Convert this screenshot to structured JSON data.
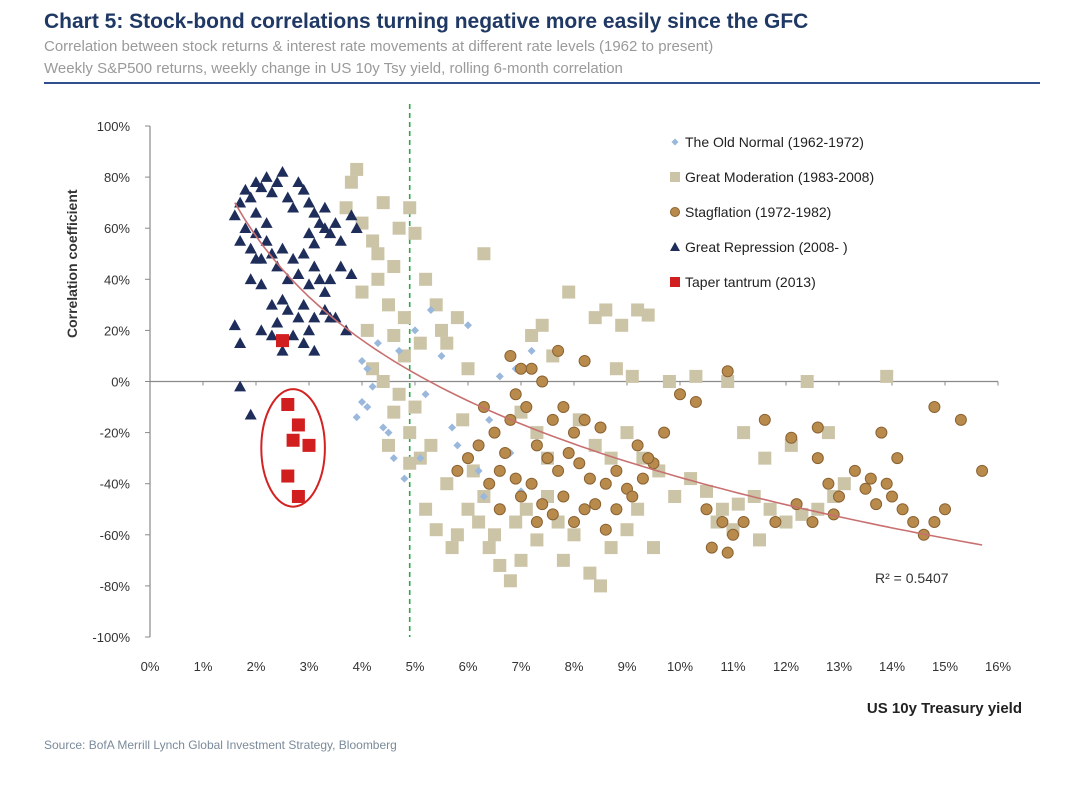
{
  "header": {
    "title": "Chart 5: Stock-bond correlations turning negative more easily since the GFC",
    "subtitle1": "Correlation between stock returns & interest rate movements at different rate levels (1962 to present)",
    "subtitle2": "Weekly S&P500 returns, weekly change in US 10y Tsy yield, rolling 6-month correlation"
  },
  "source": "Source: BofA Merrill Lynch Global Investment Strategy, Bloomberg",
  "chart_data": {
    "type": "scatter",
    "xlabel": "US 10y Treasury yield",
    "ylabel": "Correlation coefficient",
    "xlim": [
      0,
      16
    ],
    "ylim": [
      -100,
      100
    ],
    "x_ticks": [
      "0%",
      "1%",
      "2%",
      "3%",
      "4%",
      "5%",
      "6%",
      "7%",
      "8%",
      "9%",
      "10%",
      "11%",
      "12%",
      "13%",
      "14%",
      "15%",
      "16%"
    ],
    "y_ticks": [
      "100%",
      "80%",
      "60%",
      "40%",
      "20%",
      "0%",
      "-20%",
      "-40%",
      "-60%",
      "-80%",
      "-100%"
    ],
    "legend_position": "top-right",
    "reference_line": {
      "x": 4.9,
      "style": "dashed",
      "color": "#2aa84a"
    },
    "trendline": {
      "type": "logarithmic",
      "color": "#c87070",
      "x_range": [
        1.6,
        15.7
      ],
      "y_start": 70,
      "y_end": -64
    },
    "r_squared_label": "R² = 0.5407",
    "series": [
      {
        "name": "The Old Normal (1962-1972)",
        "marker": "diamond",
        "color": "#9ab8dc",
        "points": [
          [
            4.0,
            -8
          ],
          [
            4.1,
            -10
          ],
          [
            4.1,
            5
          ],
          [
            4.2,
            -2
          ],
          [
            4.0,
            8
          ],
          [
            3.9,
            -14
          ],
          [
            4.3,
            15
          ],
          [
            4.5,
            -20
          ],
          [
            4.6,
            -30
          ],
          [
            4.8,
            -38
          ],
          [
            4.7,
            12
          ],
          [
            5.0,
            20
          ],
          [
            5.2,
            -5
          ],
          [
            5.5,
            10
          ],
          [
            5.7,
            -18
          ],
          [
            5.8,
            -25
          ],
          [
            6.0,
            22
          ],
          [
            6.2,
            -35
          ],
          [
            6.3,
            -45
          ],
          [
            6.6,
            2
          ],
          [
            6.8,
            -28
          ],
          [
            7.0,
            -43
          ],
          [
            7.2,
            12
          ],
          [
            6.4,
            -15
          ],
          [
            5.3,
            28
          ],
          [
            5.1,
            -30
          ],
          [
            4.4,
            -18
          ],
          [
            6.9,
            5
          ]
        ]
      },
      {
        "name": "Great Moderation (1983-2008)",
        "marker": "square",
        "color": "#ccc4a6",
        "points": [
          [
            3.7,
            68
          ],
          [
            3.8,
            78
          ],
          [
            3.9,
            83
          ],
          [
            4.0,
            62
          ],
          [
            4.2,
            55
          ],
          [
            4.4,
            70
          ],
          [
            4.6,
            45
          ],
          [
            4.9,
            68
          ],
          [
            5.0,
            58
          ],
          [
            4.3,
            40
          ],
          [
            4.5,
            30
          ],
          [
            4.1,
            20
          ],
          [
            4.6,
            18
          ],
          [
            4.8,
            10
          ],
          [
            4.2,
            5
          ],
          [
            4.4,
            0
          ],
          [
            4.7,
            -5
          ],
          [
            5.0,
            -10
          ],
          [
            4.9,
            -20
          ],
          [
            5.1,
            -30
          ],
          [
            5.3,
            -25
          ],
          [
            5.2,
            40
          ],
          [
            5.4,
            30
          ],
          [
            5.1,
            15
          ],
          [
            5.6,
            15
          ],
          [
            5.8,
            25
          ],
          [
            6.0,
            5
          ],
          [
            5.9,
            -15
          ],
          [
            6.1,
            -35
          ],
          [
            6.3,
            -45
          ],
          [
            6.2,
            -55
          ],
          [
            6.4,
            -65
          ],
          [
            6.6,
            -72
          ],
          [
            6.8,
            -78
          ],
          [
            7.0,
            -70
          ],
          [
            5.8,
            -60
          ],
          [
            6.0,
            -50
          ],
          [
            5.6,
            -40
          ],
          [
            5.7,
            -65
          ],
          [
            6.5,
            -60
          ],
          [
            6.9,
            -55
          ],
          [
            7.1,
            -50
          ],
          [
            7.3,
            -62
          ],
          [
            7.5,
            -45
          ],
          [
            7.7,
            -55
          ],
          [
            7.8,
            -70
          ],
          [
            8.0,
            -60
          ],
          [
            8.3,
            -75
          ],
          [
            8.5,
            -80
          ],
          [
            8.7,
            -65
          ],
          [
            9.0,
            -58
          ],
          [
            9.2,
            -50
          ],
          [
            9.5,
            -65
          ],
          [
            7.2,
            18
          ],
          [
            7.4,
            22
          ],
          [
            7.6,
            10
          ],
          [
            7.9,
            35
          ],
          [
            8.4,
            25
          ],
          [
            8.6,
            28
          ],
          [
            8.9,
            22
          ],
          [
            9.2,
            28
          ],
          [
            9.4,
            26
          ],
          [
            8.8,
            5
          ],
          [
            9.1,
            2
          ],
          [
            9.8,
            0
          ],
          [
            10.3,
            2
          ],
          [
            10.9,
            0
          ],
          [
            12.4,
            0
          ],
          [
            13.9,
            2
          ],
          [
            7.3,
            -20
          ],
          [
            7.5,
            -30
          ],
          [
            7.0,
            -12
          ],
          [
            8.1,
            -15
          ],
          [
            8.4,
            -25
          ],
          [
            8.7,
            -30
          ],
          [
            9.0,
            -20
          ],
          [
            9.3,
            -30
          ],
          [
            9.6,
            -35
          ],
          [
            9.9,
            -45
          ],
          [
            10.2,
            -38
          ],
          [
            10.5,
            -43
          ],
          [
            10.8,
            -50
          ],
          [
            11.1,
            -48
          ],
          [
            11.4,
            -45
          ],
          [
            11.7,
            -50
          ],
          [
            12.0,
            -55
          ],
          [
            12.3,
            -52
          ],
          [
            12.6,
            -50
          ],
          [
            12.9,
            -45
          ],
          [
            11.2,
            -20
          ],
          [
            11.6,
            -30
          ],
          [
            12.1,
            -25
          ],
          [
            12.8,
            -20
          ],
          [
            13.1,
            -40
          ],
          [
            11.0,
            -58
          ],
          [
            11.5,
            -62
          ],
          [
            10.7,
            -55
          ],
          [
            6.3,
            50
          ],
          [
            4.7,
            60
          ],
          [
            4.3,
            50
          ],
          [
            4.0,
            35
          ],
          [
            4.8,
            25
          ],
          [
            5.5,
            20
          ],
          [
            4.5,
            -25
          ],
          [
            4.6,
            -12
          ],
          [
            5.2,
            -50
          ],
          [
            5.4,
            -58
          ],
          [
            4.9,
            -32
          ]
        ]
      },
      {
        "name": "Stagflation (1972-1982)",
        "marker": "circle",
        "color": "#b88a4c",
        "points": [
          [
            6.8,
            10
          ],
          [
            7.2,
            5
          ],
          [
            7.4,
            0
          ],
          [
            6.9,
            -5
          ],
          [
            7.1,
            -10
          ],
          [
            7.6,
            -15
          ],
          [
            7.8,
            -10
          ],
          [
            8.0,
            -20
          ],
          [
            8.2,
            -15
          ],
          [
            8.5,
            -18
          ],
          [
            7.3,
            -25
          ],
          [
            7.5,
            -30
          ],
          [
            7.7,
            -35
          ],
          [
            7.9,
            -28
          ],
          [
            8.1,
            -32
          ],
          [
            8.3,
            -38
          ],
          [
            8.6,
            -40
          ],
          [
            8.8,
            -35
          ],
          [
            9.0,
            -42
          ],
          [
            6.5,
            -20
          ],
          [
            6.7,
            -28
          ],
          [
            6.9,
            -38
          ],
          [
            7.0,
            -45
          ],
          [
            7.2,
            -40
          ],
          [
            7.4,
            -48
          ],
          [
            7.6,
            -52
          ],
          [
            7.8,
            -45
          ],
          [
            8.0,
            -55
          ],
          [
            8.2,
            -50
          ],
          [
            8.4,
            -48
          ],
          [
            8.6,
            -58
          ],
          [
            8.8,
            -50
          ],
          [
            9.1,
            -45
          ],
          [
            9.3,
            -38
          ],
          [
            9.5,
            -32
          ],
          [
            6.2,
            -25
          ],
          [
            6.0,
            -30
          ],
          [
            5.8,
            -35
          ],
          [
            6.4,
            -40
          ],
          [
            6.6,
            -35
          ],
          [
            7.0,
            5
          ],
          [
            6.8,
            -15
          ],
          [
            7.7,
            12
          ],
          [
            8.2,
            8
          ],
          [
            9.2,
            -25
          ],
          [
            9.4,
            -30
          ],
          [
            10.0,
            -5
          ],
          [
            10.3,
            -8
          ],
          [
            10.5,
            -50
          ],
          [
            10.8,
            -55
          ],
          [
            11.0,
            -60
          ],
          [
            10.6,
            -65
          ],
          [
            10.9,
            -67
          ],
          [
            11.2,
            -55
          ],
          [
            11.6,
            -15
          ],
          [
            12.1,
            -22
          ],
          [
            12.6,
            -18
          ],
          [
            12.6,
            -30
          ],
          [
            12.8,
            -40
          ],
          [
            13.0,
            -45
          ],
          [
            13.3,
            -35
          ],
          [
            13.6,
            -38
          ],
          [
            13.9,
            -40
          ],
          [
            14.1,
            -30
          ],
          [
            13.8,
            -20
          ],
          [
            13.5,
            -42
          ],
          [
            13.7,
            -48
          ],
          [
            14.0,
            -45
          ],
          [
            14.2,
            -50
          ],
          [
            14.4,
            -55
          ],
          [
            14.6,
            -60
          ],
          [
            14.8,
            -10
          ],
          [
            14.8,
            -55
          ],
          [
            15.0,
            -50
          ],
          [
            15.3,
            -15
          ],
          [
            15.7,
            -35
          ],
          [
            11.8,
            -55
          ],
          [
            12.2,
            -48
          ],
          [
            12.5,
            -55
          ],
          [
            12.9,
            -52
          ],
          [
            10.9,
            4
          ],
          [
            9.7,
            -20
          ],
          [
            6.3,
            -10
          ],
          [
            7.3,
            -55
          ],
          [
            6.6,
            -50
          ]
        ]
      },
      {
        "name": "Great Repression (2008- )",
        "marker": "triangle",
        "color": "#1e2d5a",
        "points": [
          [
            1.6,
            65
          ],
          [
            1.7,
            70
          ],
          [
            1.8,
            75
          ],
          [
            1.9,
            72
          ],
          [
            2.0,
            78
          ],
          [
            2.1,
            76
          ],
          [
            2.2,
            80
          ],
          [
            2.3,
            74
          ],
          [
            2.4,
            78
          ],
          [
            2.5,
            82
          ],
          [
            2.6,
            72
          ],
          [
            2.7,
            68
          ],
          [
            2.8,
            78
          ],
          [
            2.9,
            75
          ],
          [
            3.0,
            70
          ],
          [
            3.1,
            66
          ],
          [
            3.2,
            62
          ],
          [
            3.3,
            68
          ],
          [
            3.4,
            58
          ],
          [
            3.5,
            62
          ],
          [
            3.6,
            55
          ],
          [
            3.8,
            65
          ],
          [
            3.9,
            60
          ],
          [
            1.7,
            55
          ],
          [
            1.8,
            60
          ],
          [
            1.9,
            52
          ],
          [
            2.0,
            58
          ],
          [
            2.1,
            48
          ],
          [
            2.2,
            55
          ],
          [
            2.3,
            50
          ],
          [
            2.4,
            45
          ],
          [
            2.5,
            52
          ],
          [
            2.6,
            40
          ],
          [
            2.7,
            48
          ],
          [
            2.8,
            42
          ],
          [
            2.9,
            50
          ],
          [
            3.0,
            38
          ],
          [
            3.1,
            45
          ],
          [
            3.2,
            40
          ],
          [
            3.3,
            35
          ],
          [
            3.4,
            40
          ],
          [
            3.6,
            45
          ],
          [
            3.8,
            42
          ],
          [
            1.9,
            40
          ],
          [
            2.1,
            38
          ],
          [
            2.3,
            30
          ],
          [
            2.5,
            32
          ],
          [
            2.6,
            28
          ],
          [
            2.8,
            25
          ],
          [
            2.9,
            30
          ],
          [
            3.1,
            25
          ],
          [
            3.3,
            28
          ],
          [
            3.5,
            25
          ],
          [
            3.7,
            20
          ],
          [
            1.6,
            22
          ],
          [
            1.7,
            15
          ],
          [
            2.1,
            20
          ],
          [
            2.3,
            18
          ],
          [
            2.5,
            12
          ],
          [
            2.7,
            18
          ],
          [
            2.9,
            15
          ],
          [
            3.1,
            12
          ],
          [
            3.0,
            20
          ],
          [
            3.4,
            25
          ],
          [
            1.7,
            -2
          ],
          [
            1.9,
            -13
          ],
          [
            2.0,
            66
          ],
          [
            2.2,
            62
          ],
          [
            3.1,
            54
          ],
          [
            2.4,
            23
          ],
          [
            3.0,
            58
          ],
          [
            2.0,
            48
          ],
          [
            3.3,
            60
          ]
        ]
      },
      {
        "name": "Taper tantrum (2013)",
        "marker": "square",
        "color": "#d11f1f",
        "points": [
          [
            2.5,
            16
          ],
          [
            2.6,
            -9
          ],
          [
            2.7,
            -23
          ],
          [
            2.8,
            -17
          ],
          [
            3.0,
            -25
          ],
          [
            2.6,
            -37
          ],
          [
            2.8,
            -45
          ]
        ]
      }
    ],
    "annotation_ellipse": {
      "cx": 2.7,
      "cy": -26,
      "rx_units": 0.6,
      "ry_units": 23,
      "color": "#d22222"
    }
  }
}
